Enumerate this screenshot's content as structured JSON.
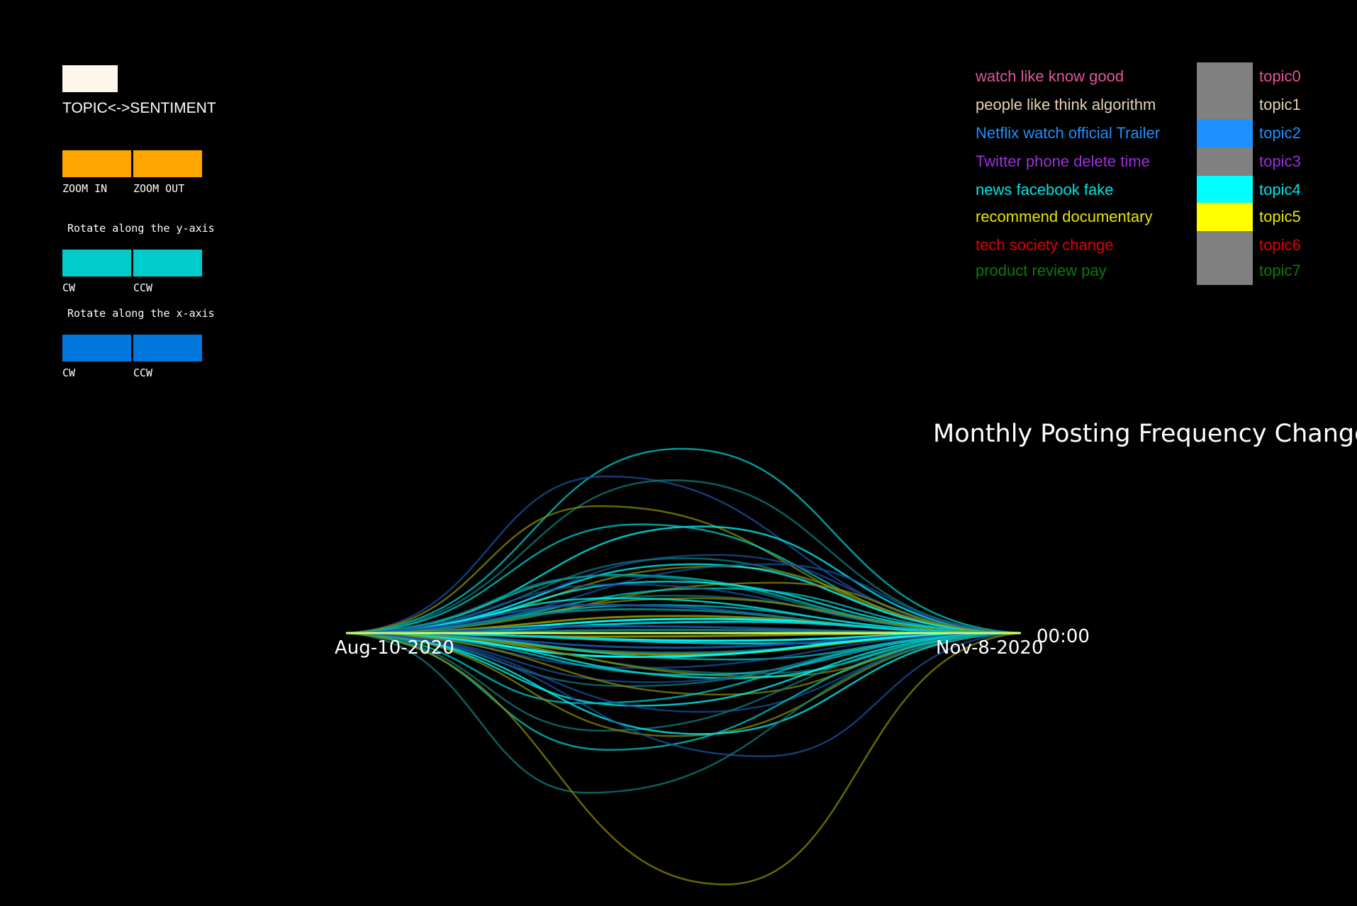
{
  "controls": {
    "mode_toggle_label": "TOPIC<->SENTIMENT",
    "zoom_in_label": "ZOOM IN",
    "zoom_out_label": "ZOOM OUT",
    "rotate_y_label": "Rotate along the y-axis",
    "rotate_y_cw_label": "CW",
    "rotate_y_ccw_label": "CCW",
    "rotate_x_label": "Rotate along the x-axis",
    "rotate_x_cw_label": "CW",
    "rotate_x_ccw_label": "CCW",
    "colors": {
      "toggle": "#fdf6ea",
      "zoom": "#ffa500",
      "rotate_y": "#00cccc",
      "rotate_x": "#0077dd"
    }
  },
  "legend": [
    {
      "words": "watch like know good",
      "topic": "topic0",
      "color": "#e0559a",
      "swatch": "#808080"
    },
    {
      "words": "people like think algorithm",
      "topic": "topic1",
      "color": "#e6d3b3",
      "swatch": "#808080"
    },
    {
      "words": "Netflix watch official Trailer",
      "topic": "topic2",
      "color": "#1e90ff",
      "swatch": "#1e90ff"
    },
    {
      "words": "Twitter phone delete time",
      "topic": "topic3",
      "color": "#9b30d9",
      "swatch": "#808080"
    },
    {
      "words": "news facebook fake",
      "topic": "topic4",
      "color": "#00e5e5",
      "swatch": "#00ffff"
    },
    {
      "words": "recommend documentary",
      "topic": "topic5",
      "color": "#e6e600",
      "swatch": "#ffff00"
    },
    {
      "words": "tech society change",
      "topic": "topic6",
      "color": "#e00000",
      "swatch": "#808080"
    },
    {
      "words": "product review pay",
      "topic": "topic7",
      "color": "#0b7a0b",
      "swatch": "#808080"
    }
  ],
  "chart_data": {
    "type": "line",
    "title": "Monthly Posting Frequency Change",
    "x_start_label": "Aug-10-2020",
    "x_end_label": "Nov-8-2020",
    "time_label": "00:00",
    "series_colors": [
      "#00cccc",
      "#1a4f9c",
      "#0f7d7d",
      "#8a8a00",
      "#00ffff"
    ]
  }
}
